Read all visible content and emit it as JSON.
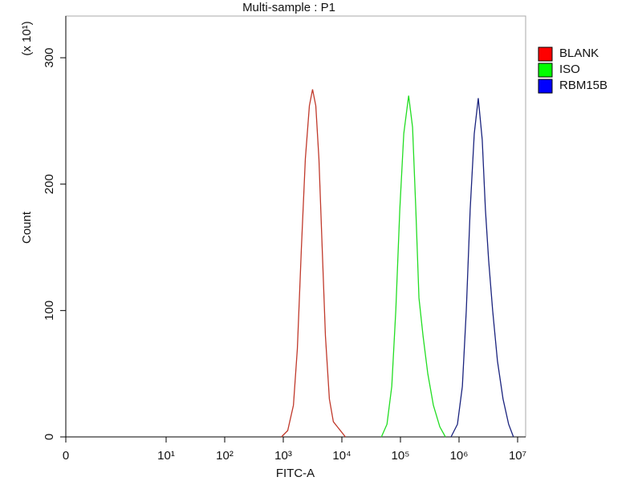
{
  "chart_data": {
    "type": "line",
    "title": "Multi-sample : P1",
    "x_label": "FITC-A",
    "y_label": "Count",
    "y_multiplier": "(x 10¹)",
    "xscale": "biexponential",
    "xlim": [
      0,
      10000000
    ],
    "ylim": [
      0,
      333
    ],
    "xticks": [
      0,
      {
        "value": 10,
        "label": "10¹"
      },
      {
        "value": 100,
        "label": "10²"
      },
      {
        "value": 1000,
        "label": "10³"
      },
      {
        "value": 10000,
        "label": "10⁴"
      },
      {
        "value": 100000,
        "label": "10⁵"
      },
      {
        "value": 1000000,
        "label": "10⁶"
      },
      {
        "value": 10000000,
        "label": "10⁷"
      }
    ],
    "yticks": [
      0,
      100,
      200,
      300
    ],
    "legend": "outside-right",
    "series": [
      {
        "name": "BLANK",
        "color": "#c0392b",
        "legend_color": "#ff0000",
        "x": [
          930,
          1190,
          1490,
          1740,
          2040,
          2380,
          2790,
          3160,
          3590,
          4060,
          4610,
          5240,
          6120,
          7160,
          8380,
          9820,
          11500
        ],
        "values": [
          0,
          5,
          25,
          70,
          150,
          220,
          262,
          275,
          262,
          220,
          150,
          80,
          30,
          12,
          8,
          4,
          0
        ]
      },
      {
        "name": "ISO",
        "color": "#22dd22",
        "legend_color": "#00ff00",
        "x": [
          47300,
          58900,
          71100,
          83300,
          97500,
          114000,
          138000,
          161000,
          183000,
          207000,
          243000,
          293000,
          365000,
          470000,
          586000
        ],
        "values": [
          0,
          10,
          40,
          100,
          180,
          240,
          270,
          245,
          180,
          110,
          80,
          50,
          25,
          8,
          0
        ]
      },
      {
        "name": "RBM15B",
        "color": "#1a237e",
        "legend_color": "#0000ff",
        "x": [
          730000,
          940000,
          1140000,
          1330000,
          1550000,
          1820000,
          2130000,
          2490000,
          2820000,
          3200000,
          3750000,
          4530000,
          5640000,
          7030000,
          8490000
        ],
        "values": [
          0,
          10,
          40,
          100,
          180,
          240,
          268,
          235,
          180,
          140,
          100,
          60,
          30,
          10,
          0
        ]
      }
    ]
  }
}
